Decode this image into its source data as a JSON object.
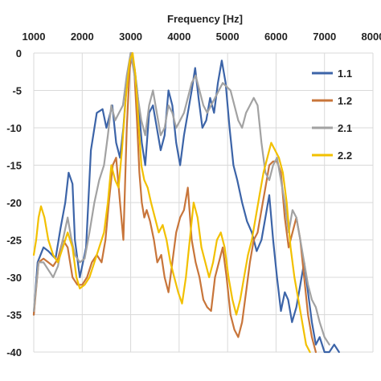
{
  "chart_data": {
    "type": "line",
    "title": "",
    "xlabel": "Frequency  [Hz]",
    "ylabel": "",
    "xlim": [
      1000,
      8000
    ],
    "ylim": [
      -40,
      0
    ],
    "x_axis_position": "top",
    "x_ticks": [
      1000,
      2000,
      3000,
      4000,
      5000,
      6000,
      7000,
      8000
    ],
    "y_ticks": [
      0,
      -5,
      -10,
      -15,
      -20,
      -25,
      -30,
      -35,
      -40
    ],
    "grid": true,
    "legend_position": "right",
    "series": [
      {
        "name": "1.1",
        "color": "#3c64a8",
        "points": [
          [
            1000,
            -35
          ],
          [
            1080,
            -28
          ],
          [
            1200,
            -26
          ],
          [
            1300,
            -26.5
          ],
          [
            1450,
            -27.5
          ],
          [
            1550,
            -23.5
          ],
          [
            1650,
            -20
          ],
          [
            1720,
            -16
          ],
          [
            1800,
            -17.5
          ],
          [
            1850,
            -25
          ],
          [
            1950,
            -30
          ],
          [
            2080,
            -26
          ],
          [
            2180,
            -13
          ],
          [
            2300,
            -8
          ],
          [
            2420,
            -7.5
          ],
          [
            2500,
            -10
          ],
          [
            2620,
            -7
          ],
          [
            2700,
            -12
          ],
          [
            2780,
            -14
          ],
          [
            2850,
            -10
          ],
          [
            2920,
            -4
          ],
          [
            3000,
            0
          ],
          [
            3080,
            -2
          ],
          [
            3150,
            -6
          ],
          [
            3230,
            -12
          ],
          [
            3300,
            -15
          ],
          [
            3380,
            -8
          ],
          [
            3460,
            -7
          ],
          [
            3540,
            -10
          ],
          [
            3620,
            -13
          ],
          [
            3700,
            -11
          ],
          [
            3780,
            -5
          ],
          [
            3860,
            -7
          ],
          [
            3940,
            -12
          ],
          [
            4020,
            -15
          ],
          [
            4100,
            -11
          ],
          [
            4180,
            -8
          ],
          [
            4260,
            -5
          ],
          [
            4330,
            -2
          ],
          [
            4400,
            -6
          ],
          [
            4480,
            -10
          ],
          [
            4560,
            -9
          ],
          [
            4640,
            -6
          ],
          [
            4720,
            -8
          ],
          [
            4800,
            -4
          ],
          [
            4880,
            -1
          ],
          [
            4960,
            -4
          ],
          [
            5040,
            -10
          ],
          [
            5120,
            -15
          ],
          [
            5200,
            -17
          ],
          [
            5300,
            -20
          ],
          [
            5400,
            -22.5
          ],
          [
            5500,
            -24
          ],
          [
            5600,
            -26.5
          ],
          [
            5700,
            -25
          ],
          [
            5780,
            -22
          ],
          [
            5860,
            -19
          ],
          [
            5940,
            -25
          ],
          [
            6020,
            -30
          ],
          [
            6100,
            -34.5
          ],
          [
            6180,
            -32
          ],
          [
            6250,
            -33
          ],
          [
            6330,
            -36
          ],
          [
            6420,
            -34
          ],
          [
            6500,
            -31
          ],
          [
            6580,
            -28
          ],
          [
            6660,
            -32
          ],
          [
            6740,
            -36
          ],
          [
            6820,
            -39
          ],
          [
            6900,
            -38
          ],
          [
            7000,
            -40
          ],
          [
            7100,
            -40
          ],
          [
            7200,
            -39
          ],
          [
            7300,
            -40
          ]
        ]
      },
      {
        "name": "1.2",
        "color": "#c8753a",
        "points": [
          [
            1000,
            -35
          ],
          [
            1100,
            -28
          ],
          [
            1200,
            -27.5
          ],
          [
            1300,
            -28
          ],
          [
            1400,
            -28.5
          ],
          [
            1500,
            -27.5
          ],
          [
            1600,
            -25
          ],
          [
            1700,
            -26
          ],
          [
            1800,
            -30
          ],
          [
            1900,
            -31
          ],
          [
            2000,
            -31
          ],
          [
            2100,
            -30
          ],
          [
            2200,
            -28
          ],
          [
            2300,
            -27
          ],
          [
            2400,
            -28
          ],
          [
            2480,
            -25
          ],
          [
            2550,
            -20
          ],
          [
            2630,
            -15
          ],
          [
            2700,
            -14
          ],
          [
            2780,
            -20
          ],
          [
            2850,
            -25
          ],
          [
            2920,
            -10
          ],
          [
            2980,
            -2
          ],
          [
            3030,
            0
          ],
          [
            3080,
            -3
          ],
          [
            3130,
            -9
          ],
          [
            3180,
            -16
          ],
          [
            3230,
            -20
          ],
          [
            3280,
            -22
          ],
          [
            3330,
            -21
          ],
          [
            3400,
            -22.5
          ],
          [
            3480,
            -25
          ],
          [
            3550,
            -28
          ],
          [
            3630,
            -27
          ],
          [
            3700,
            -30
          ],
          [
            3780,
            -32
          ],
          [
            3860,
            -28
          ],
          [
            3940,
            -24
          ],
          [
            4020,
            -22
          ],
          [
            4100,
            -21
          ],
          [
            4180,
            -18
          ],
          [
            4260,
            -25
          ],
          [
            4340,
            -28
          ],
          [
            4420,
            -30
          ],
          [
            4500,
            -33
          ],
          [
            4580,
            -34
          ],
          [
            4660,
            -34.5
          ],
          [
            4740,
            -30
          ],
          [
            4820,
            -28
          ],
          [
            4900,
            -26
          ],
          [
            4980,
            -30
          ],
          [
            5060,
            -35
          ],
          [
            5140,
            -37
          ],
          [
            5220,
            -38
          ],
          [
            5300,
            -36
          ],
          [
            5380,
            -32
          ],
          [
            5460,
            -28
          ],
          [
            5540,
            -25
          ],
          [
            5620,
            -24
          ],
          [
            5700,
            -21
          ],
          [
            5780,
            -18
          ],
          [
            5860,
            -15
          ],
          [
            5940,
            -14.5
          ],
          [
            6020,
            -14.5
          ],
          [
            6100,
            -16
          ],
          [
            6180,
            -22
          ],
          [
            6260,
            -26
          ],
          [
            6340,
            -24
          ],
          [
            6420,
            -22
          ],
          [
            6500,
            -25
          ],
          [
            6580,
            -30
          ],
          [
            6660,
            -35
          ],
          [
            6740,
            -38
          ],
          [
            6820,
            -41
          ]
        ]
      },
      {
        "name": "2.1",
        "color": "#a2a2a2",
        "points": [
          [
            1000,
            -34.5
          ],
          [
            1100,
            -28
          ],
          [
            1200,
            -28
          ],
          [
            1300,
            -29
          ],
          [
            1400,
            -30
          ],
          [
            1500,
            -28.5
          ],
          [
            1600,
            -25
          ],
          [
            1700,
            -22
          ],
          [
            1780,
            -25
          ],
          [
            1850,
            -27
          ],
          [
            1950,
            -28
          ],
          [
            2050,
            -27.5
          ],
          [
            2150,
            -24
          ],
          [
            2250,
            -20
          ],
          [
            2350,
            -17
          ],
          [
            2450,
            -15
          ],
          [
            2530,
            -11
          ],
          [
            2600,
            -7
          ],
          [
            2680,
            -9
          ],
          [
            2760,
            -8
          ],
          [
            2840,
            -7
          ],
          [
            2920,
            -3
          ],
          [
            3000,
            0
          ],
          [
            3080,
            -3
          ],
          [
            3150,
            -6
          ],
          [
            3220,
            -9
          ],
          [
            3300,
            -11
          ],
          [
            3380,
            -7
          ],
          [
            3460,
            -5
          ],
          [
            3540,
            -8
          ],
          [
            3620,
            -11
          ],
          [
            3700,
            -10
          ],
          [
            3780,
            -7
          ],
          [
            3860,
            -8
          ],
          [
            3940,
            -10
          ],
          [
            4020,
            -9
          ],
          [
            4100,
            -8
          ],
          [
            4180,
            -6
          ],
          [
            4260,
            -4
          ],
          [
            4340,
            -3
          ],
          [
            4420,
            -5
          ],
          [
            4500,
            -7
          ],
          [
            4580,
            -8
          ],
          [
            4660,
            -7
          ],
          [
            4740,
            -6
          ],
          [
            4820,
            -5
          ],
          [
            4900,
            -4
          ],
          [
            4980,
            -4.5
          ],
          [
            5060,
            -5
          ],
          [
            5140,
            -7
          ],
          [
            5220,
            -9
          ],
          [
            5300,
            -10
          ],
          [
            5380,
            -8
          ],
          [
            5460,
            -7
          ],
          [
            5540,
            -6
          ],
          [
            5620,
            -7
          ],
          [
            5700,
            -12
          ],
          [
            5780,
            -16
          ],
          [
            5860,
            -17
          ],
          [
            5940,
            -15
          ],
          [
            6020,
            -14
          ],
          [
            6100,
            -17
          ],
          [
            6180,
            -20
          ],
          [
            6260,
            -24
          ],
          [
            6340,
            -21
          ],
          [
            6420,
            -22
          ],
          [
            6500,
            -25
          ],
          [
            6580,
            -28
          ],
          [
            6660,
            -31
          ],
          [
            6740,
            -33
          ],
          [
            6820,
            -34
          ],
          [
            6900,
            -36
          ],
          [
            7000,
            -38
          ],
          [
            7100,
            -39
          ]
        ]
      },
      {
        "name": "2.2",
        "color": "#f2c000",
        "points": [
          [
            1000,
            -27
          ],
          [
            1050,
            -25
          ],
          [
            1100,
            -22
          ],
          [
            1150,
            -20.5
          ],
          [
            1220,
            -22
          ],
          [
            1300,
            -25
          ],
          [
            1400,
            -27
          ],
          [
            1500,
            -28
          ],
          [
            1600,
            -26
          ],
          [
            1700,
            -24
          ],
          [
            1800,
            -26
          ],
          [
            1880,
            -30
          ],
          [
            1950,
            -31.5
          ],
          [
            2050,
            -31
          ],
          [
            2150,
            -30
          ],
          [
            2250,
            -28
          ],
          [
            2350,
            -26
          ],
          [
            2450,
            -24
          ],
          [
            2530,
            -20
          ],
          [
            2600,
            -15
          ],
          [
            2680,
            -17
          ],
          [
            2750,
            -18
          ],
          [
            2820,
            -13
          ],
          [
            2900,
            -6
          ],
          [
            2980,
            -1
          ],
          [
            3040,
            0
          ],
          [
            3100,
            -3
          ],
          [
            3160,
            -9
          ],
          [
            3220,
            -15
          ],
          [
            3280,
            -17
          ],
          [
            3350,
            -18
          ],
          [
            3420,
            -20
          ],
          [
            3500,
            -22
          ],
          [
            3580,
            -24
          ],
          [
            3660,
            -23
          ],
          [
            3740,
            -25
          ],
          [
            3820,
            -28
          ],
          [
            3900,
            -30
          ],
          [
            3980,
            -32
          ],
          [
            4060,
            -33.5
          ],
          [
            4140,
            -30
          ],
          [
            4220,
            -25
          ],
          [
            4300,
            -20
          ],
          [
            4380,
            -22
          ],
          [
            4460,
            -26
          ],
          [
            4540,
            -28
          ],
          [
            4620,
            -30
          ],
          [
            4700,
            -28
          ],
          [
            4780,
            -25
          ],
          [
            4860,
            -24
          ],
          [
            4940,
            -26
          ],
          [
            5020,
            -30
          ],
          [
            5100,
            -33
          ],
          [
            5180,
            -35
          ],
          [
            5260,
            -33
          ],
          [
            5340,
            -30
          ],
          [
            5420,
            -27
          ],
          [
            5500,
            -25
          ],
          [
            5580,
            -22
          ],
          [
            5660,
            -19
          ],
          [
            5740,
            -16
          ],
          [
            5820,
            -14
          ],
          [
            5900,
            -12
          ],
          [
            5980,
            -13
          ],
          [
            6060,
            -14
          ],
          [
            6140,
            -16
          ],
          [
            6220,
            -20
          ],
          [
            6300,
            -26
          ],
          [
            6380,
            -30
          ],
          [
            6460,
            -33
          ],
          [
            6540,
            -36
          ],
          [
            6620,
            -39
          ],
          [
            6700,
            -41
          ]
        ]
      }
    ]
  }
}
